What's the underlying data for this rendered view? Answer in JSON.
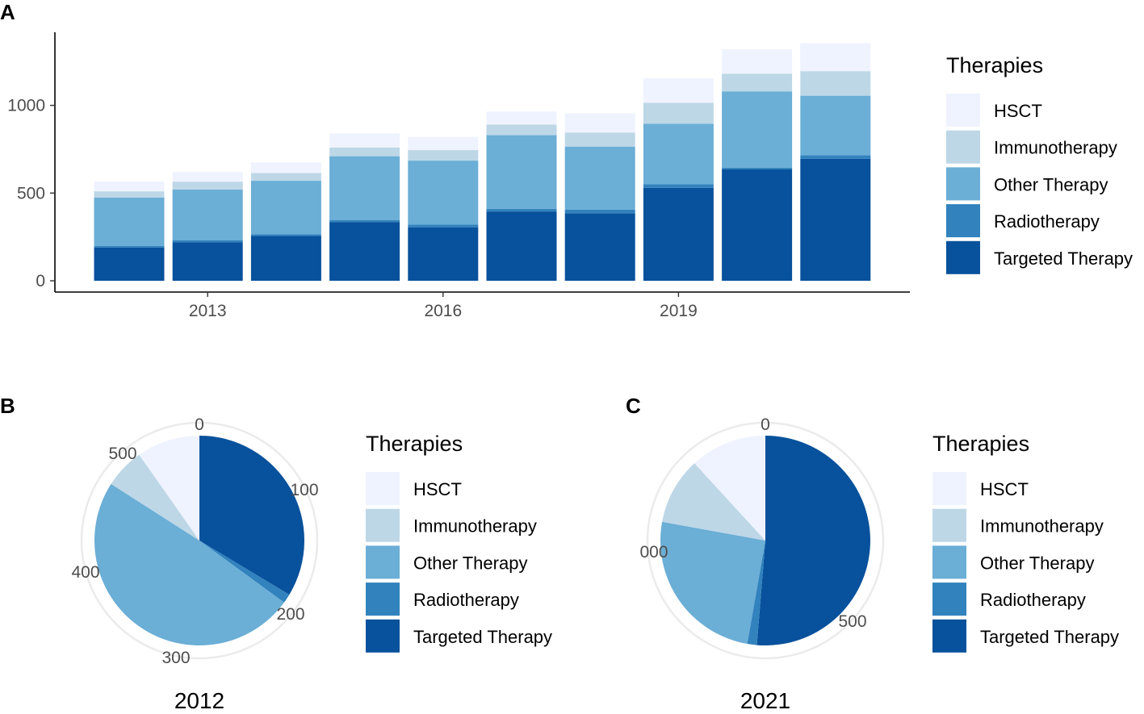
{
  "panels": {
    "a": "A",
    "b": "B",
    "c": "C"
  },
  "colors": {
    "HSCT": "#eff3ff",
    "Immunotherapy": "#bdd7e7",
    "Other Therapy": "#6baed6",
    "Radiotherapy": "#3182bd",
    "Targeted Therapy": "#08519c"
  },
  "chart_data": [
    {
      "type": "bar",
      "stacked": true,
      "x": [
        2012,
        2013,
        2014,
        2015,
        2016,
        2017,
        2018,
        2019,
        2020,
        2021
      ],
      "xticks": [
        2013,
        2016,
        2019
      ],
      "yticks": [
        0,
        500,
        1000
      ],
      "ylim": [
        0,
        1400
      ],
      "xlabel": "",
      "ylabel": "",
      "legend": {
        "title": "Therapies",
        "position": "right"
      },
      "series": [
        {
          "name": "Targeted Therapy",
          "values": [
            190,
            220,
            255,
            335,
            305,
            395,
            385,
            530,
            635,
            695
          ]
        },
        {
          "name": "Radiotherapy",
          "values": [
            8,
            10,
            10,
            10,
            15,
            15,
            20,
            20,
            10,
            20
          ]
        },
        {
          "name": "Other Therapy",
          "values": [
            277,
            290,
            305,
            365,
            365,
            420,
            360,
            345,
            435,
            340
          ]
        },
        {
          "name": "Immunotherapy",
          "values": [
            35,
            45,
            45,
            50,
            60,
            60,
            80,
            120,
            100,
            140
          ]
        },
        {
          "name": "HSCT",
          "values": [
            55,
            55,
            60,
            80,
            75,
            75,
            110,
            140,
            140,
            160
          ]
        }
      ]
    },
    {
      "type": "pie",
      "title": "2012",
      "polar_ticks": [
        "0",
        "100",
        "200",
        "300",
        "400",
        "500"
      ],
      "legend": {
        "title": "Therapies",
        "position": "right"
      },
      "slices": [
        {
          "name": "Targeted Therapy",
          "value": 190
        },
        {
          "name": "Radiotherapy",
          "value": 8
        },
        {
          "name": "Other Therapy",
          "value": 277
        },
        {
          "name": "Immunotherapy",
          "value": 35
        },
        {
          "name": "HSCT",
          "value": 55
        }
      ]
    },
    {
      "type": "pie",
      "title": "2021",
      "polar_ticks": [
        "0",
        "500",
        "000"
      ],
      "legend": {
        "title": "Therapies",
        "position": "right"
      },
      "slices": [
        {
          "name": "Targeted Therapy",
          "value": 695
        },
        {
          "name": "Radiotherapy",
          "value": 20
        },
        {
          "name": "Other Therapy",
          "value": 340
        },
        {
          "name": "Immunotherapy",
          "value": 140
        },
        {
          "name": "HSCT",
          "value": 160
        }
      ]
    }
  ]
}
